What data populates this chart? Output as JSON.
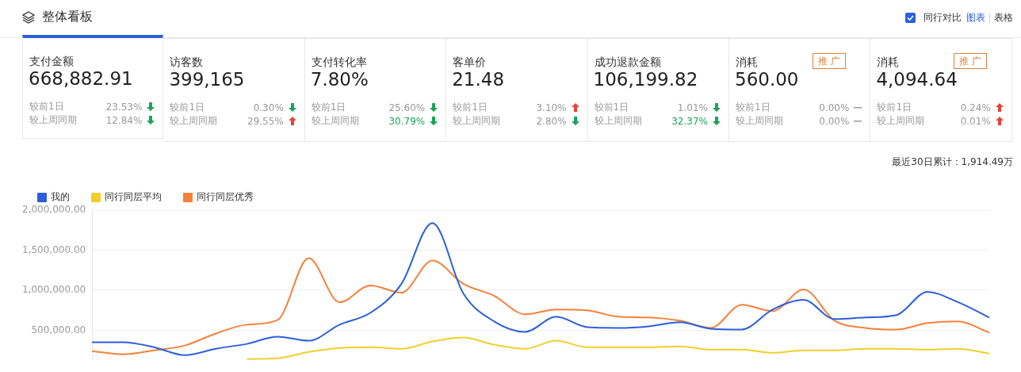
{
  "chart_data": [
    {
      "type": "other",
      "title": "整体看板",
      "annotations": [
        "支付金额",
        "668,882.91",
        "较前1日",
        "23.53%",
        "较上周同期",
        "12.84%",
        "访客数",
        "399,165",
        "较前1日",
        "0.30%",
        "较上周同期",
        "29.55%",
        "支付转化率",
        "7.80%",
        "较前1日",
        "25.60%",
        "较上周同期",
        "30.79%",
        "客单价",
        "21.48",
        "较前1日",
        "3.10%",
        "较上周同期",
        "2.80%",
        "成功退款金额",
        "106,199.82",
        "较前1日",
        "1.01%",
        "较上周同期",
        "32.37%",
        "消耗",
        "560.00",
        "较前1日",
        "0.00%",
        "较上周同期",
        "0.00%",
        "消耗",
        "4,094.64",
        "较前1日",
        "0.24%",
        "较上周同期",
        "0.01%",
        "推 广",
        "推 广",
        "同行对比",
        "图表",
        "表格"
      ]
    },
    {
      "type": "line",
      "annotations": [
        "最近30日累计：1,914.49万"
      ],
      "categories": [
        null,
        null,
        null,
        null,
        null,
        null,
        null,
        null,
        null,
        null,
        null,
        null,
        null,
        null,
        null,
        null,
        null,
        null,
        null,
        null,
        null,
        null,
        null,
        null,
        null,
        null,
        null,
        null,
        null,
        null
      ],
      "series": [
        {
          "name": "我的",
          "color": "#2b5fd9",
          "values": [
            350000,
            350000,
            290000,
            190000,
            270000,
            330000,
            420000,
            370000,
            570000,
            720000,
            1080000,
            1840000,
            960000,
            610000,
            480000,
            670000,
            540000,
            530000,
            550000,
            600000,
            520000,
            510000,
            760000,
            880000,
            640000,
            660000,
            690000,
            980000,
            850000,
            660000
          ]
        },
        {
          "name": "同行同层平均",
          "color": "#f0cf2a",
          "values": [
            null,
            null,
            null,
            null,
            null,
            140000,
            150000,
            230000,
            280000,
            290000,
            270000,
            360000,
            410000,
            320000,
            270000,
            370000,
            290000,
            290000,
            290000,
            300000,
            260000,
            260000,
            220000,
            250000,
            250000,
            270000,
            270000,
            260000,
            270000,
            210000
          ]
        },
        {
          "name": "同行同层优秀",
          "color": "#f5813a",
          "values": [
            240000,
            200000,
            250000,
            310000,
            460000,
            570000,
            630000,
            1400000,
            850000,
            1060000,
            970000,
            1370000,
            1080000,
            930000,
            700000,
            760000,
            750000,
            670000,
            660000,
            620000,
            530000,
            820000,
            740000,
            1010000,
            620000,
            530000,
            510000,
            590000,
            610000,
            470000
          ]
        }
      ],
      "ylim": [
        130000,
        2000000
      ],
      "yticks": [
        {
          "value": 500000,
          "label": "500,000.00"
        },
        {
          "value": 1000000,
          "label": "1,000,000.00"
        },
        {
          "value": 1500000,
          "label": "1,500,000.00"
        },
        {
          "value": 2000000,
          "label": "2,000,000.00"
        }
      ],
      "tick_labels": "y",
      "grid": "y",
      "legend": "top left",
      "marker": "none"
    }
  ]
}
